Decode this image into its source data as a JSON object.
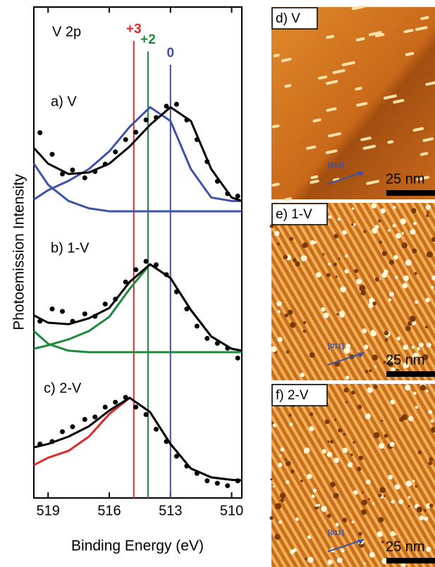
{
  "chart_data": {
    "type": "line",
    "xlabel": "Binding Energy (eV)",
    "ylabel": "Photoemission Intensity",
    "annotations": [
      "V 2p",
      "a) V",
      "b) 1-V",
      "c) 2-V"
    ],
    "xlim": [
      519.7,
      509.5
    ],
    "xticks": [
      519,
      516,
      513,
      510
    ],
    "ylim": [
      0,
      100
    ],
    "markers": [
      {
        "value": 514.8,
        "label": "+3",
        "color": "#e8262b"
      },
      {
        "value": 514.1,
        "label": "+2",
        "color": "#1e8a3c"
      },
      {
        "value": 513.0,
        "label": "0",
        "color": "#3d52a8"
      }
    ],
    "x": [
      519.7,
      519,
      518,
      517,
      516,
      515,
      514,
      513,
      512,
      511,
      510,
      509.5
    ],
    "series": [
      {
        "type": "line",
        "color": "#3d52a8",
        "values": [
          60.8,
          62.7,
          64.6,
          67.0,
          70.6,
          75.6,
          79.6,
          76.8,
          67.0,
          61.2,
          60.5,
          60.5
        ]
      },
      {
        "type": "line",
        "color": "#3d52a8",
        "values": [
          68.1,
          63.8,
          60.5,
          59.0,
          58.4,
          58.4,
          58.4,
          58.4,
          58.4,
          58.4,
          58.4,
          58.4
        ]
      },
      {
        "type": "line",
        "color": "#000000",
        "values": [
          71.3,
          68.1,
          66.0,
          66.3,
          68.1,
          71.6,
          76.0,
          79.6,
          76.8,
          67.0,
          61.2,
          60.5
        ]
      },
      {
        "type": "scatter",
        "color": "#000000",
        "x": [
          519.4,
          518.8,
          518.3,
          517.8,
          517.2,
          516.7,
          516.2,
          515.7,
          515.2,
          514.7,
          514.2,
          513.7,
          513.2,
          512.7,
          512.2,
          511.7,
          511.2,
          510.7,
          510.2,
          509.7
        ],
        "values": [
          74.4,
          70.0,
          66.0,
          66.8,
          65.2,
          66.5,
          68.0,
          70.5,
          73.0,
          74.5,
          77.0,
          77.5,
          79.8,
          80.2,
          77.0,
          73.0,
          68.5,
          64.5,
          62.0,
          61.5
        ]
      },
      {
        "type": "line",
        "color": "#1e8a3c",
        "values": [
          30.4,
          31.1,
          32.3,
          34.0,
          36.9,
          42.6,
          47.6,
          44.8,
          38.3,
          32.9,
          30.4,
          30.0
        ]
      },
      {
        "type": "line",
        "color": "#1e8a3c",
        "values": [
          34.0,
          31.4,
          30.0,
          29.7,
          29.7,
          29.7,
          29.7,
          29.7,
          29.7,
          29.7,
          29.7,
          29.7
        ]
      },
      {
        "type": "line",
        "color": "#000000",
        "values": [
          37.2,
          35.7,
          35.4,
          36.6,
          38.7,
          44.0,
          47.6,
          44.8,
          38.3,
          32.9,
          30.4,
          30.0
        ]
      },
      {
        "type": "scatter",
        "color": "#000000",
        "x": [
          519.4,
          518.8,
          518.3,
          517.8,
          517.2,
          516.7,
          516.2,
          515.7,
          515.2,
          514.7,
          514.2,
          513.7,
          513.2,
          512.7,
          512.2,
          511.7,
          511.2,
          510.7,
          510.2,
          509.7
        ],
        "values": [
          36.0,
          38.5,
          38.0,
          36.0,
          37.5,
          37.0,
          39.5,
          40.5,
          44.0,
          46.5,
          48.2,
          47.5,
          45.5,
          42.0,
          38.5,
          35.0,
          32.5,
          31.5,
          30.5,
          28.5
        ]
      },
      {
        "type": "line",
        "color": "#e02a2a",
        "values": [
          6.7,
          8.2,
          9.6,
          12.5,
          17.1,
          20.4,
          17.5,
          11.0,
          6.0,
          4.2,
          3.7,
          3.6
        ]
      },
      {
        "type": "line",
        "color": "#000000",
        "values": [
          10.3,
          11.0,
          12.5,
          14.6,
          17.8,
          20.4,
          17.5,
          11.0,
          6.0,
          4.2,
          3.7,
          3.6
        ]
      },
      {
        "type": "scatter",
        "color": "#000000",
        "x": [
          519.4,
          518.8,
          518.3,
          517.8,
          517.2,
          516.7,
          516.2,
          515.7,
          515.2,
          514.7,
          514.2,
          513.7,
          513.2,
          512.7,
          512.2,
          511.7,
          511.2,
          510.7,
          510.2,
          509.7
        ],
        "values": [
          11.0,
          11.5,
          13.5,
          14.5,
          16.0,
          16.5,
          18.5,
          19.5,
          20.5,
          18.5,
          17.0,
          14.0,
          11.5,
          8.5,
          6.5,
          5.0,
          3.5,
          3.0,
          2.5,
          3.5
        ]
      }
    ]
  },
  "images": [
    {
      "label": "d) V",
      "direction": "[011]",
      "scale": "25 nm"
    },
    {
      "label": "e) 1-V",
      "direction": "[011]",
      "scale": "25 nm"
    },
    {
      "label": "f) 2-V",
      "direction": "[011]",
      "scale": "25 nm"
    }
  ]
}
